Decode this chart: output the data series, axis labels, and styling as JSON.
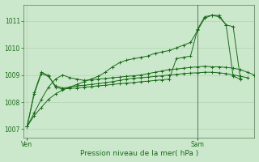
{
  "bg_color": "#cce8cc",
  "grid_color": "#aaccaa",
  "line_color": "#1a6b1a",
  "marker_color": "#1a6b1a",
  "xlabel": "Pression niveau de la mer( hPa )",
  "xlabel_color": "#1a6b1a",
  "tick_label_color": "#1a6b1a",
  "xtick_labels": [
    "Ven",
    "Sam"
  ],
  "xtick_positions": [
    0,
    24
  ],
  "ylim": [
    1006.7,
    1011.6
  ],
  "xlim": [
    -0.5,
    32
  ],
  "yticks": [
    1007,
    1008,
    1009,
    1010,
    1011
  ],
  "series": [
    [
      1007.1,
      1007.5,
      1007.8,
      1008.1,
      1008.3,
      1008.45,
      1008.55,
      1008.65,
      1008.75,
      1008.85,
      1008.95,
      1009.1,
      1009.3,
      1009.45,
      1009.55,
      1009.6,
      1009.65,
      1009.7,
      1009.8,
      1009.85,
      1009.9,
      1010.0,
      1010.1,
      1010.2,
      1010.65,
      1011.1,
      1011.2,
      1011.15,
      1010.85,
      1008.95,
      1008.85
    ],
    [
      1007.1,
      1007.6,
      1008.1,
      1008.55,
      1008.85,
      1009.0,
      1008.9,
      1008.85,
      1008.8,
      1008.82,
      1008.85,
      1008.87,
      1008.9,
      1008.92,
      1008.95,
      1008.97,
      1009.0,
      1009.05,
      1009.1,
      1009.15,
      1009.2,
      1009.22,
      1009.25,
      1009.28,
      1009.3,
      1009.32,
      1009.3,
      1009.3,
      1009.28,
      1009.25,
      1009.2,
      1009.1,
      1009.0
    ],
    [
      1007.1,
      1008.3,
      1009.05,
      1008.95,
      1008.6,
      1008.52,
      1008.55,
      1008.6,
      1008.62,
      1008.65,
      1008.68,
      1008.72,
      1008.75,
      1008.8,
      1008.85,
      1008.88,
      1008.9,
      1008.92,
      1008.95,
      1008.97,
      1009.0,
      1009.02,
      1009.05,
      1009.07,
      1009.08,
      1009.1,
      1009.1,
      1009.08,
      1009.05,
      1009.0,
      1008.95,
      1008.9
    ],
    [
      1007.1,
      1008.35,
      1009.1,
      1008.98,
      1008.55,
      1008.48,
      1008.5,
      1008.52,
      1008.55,
      1008.57,
      1008.6,
      1008.62,
      1008.65,
      1008.68,
      1008.7,
      1008.72,
      1008.75,
      1008.77,
      1008.8,
      1008.82,
      1008.85,
      1009.6,
      1009.65,
      1009.7,
      1010.7,
      1011.15,
      1011.2,
      1011.2,
      1010.85,
      1010.78,
      1008.88
    ]
  ],
  "series_x": [
    [
      0,
      1,
      2,
      3,
      4,
      5,
      6,
      7,
      8,
      9,
      10,
      11,
      12,
      13,
      14,
      15,
      16,
      17,
      18,
      19,
      20,
      21,
      22,
      23,
      24,
      25,
      26,
      27,
      28,
      29,
      30
    ],
    [
      0,
      1,
      2,
      3,
      4,
      5,
      6,
      7,
      8,
      9,
      10,
      11,
      12,
      13,
      14,
      15,
      16,
      17,
      18,
      19,
      20,
      21,
      22,
      23,
      24,
      25,
      26,
      27,
      28,
      29,
      30,
      31,
      32
    ],
    [
      0,
      1,
      2,
      3,
      4,
      5,
      6,
      7,
      8,
      9,
      10,
      11,
      12,
      13,
      14,
      15,
      16,
      17,
      18,
      19,
      20,
      21,
      22,
      23,
      24,
      25,
      26,
      27,
      28,
      29,
      30,
      31
    ],
    [
      0,
      1,
      2,
      3,
      4,
      5,
      6,
      7,
      8,
      9,
      10,
      11,
      12,
      13,
      14,
      15,
      16,
      17,
      18,
      19,
      20,
      21,
      22,
      23,
      24,
      25,
      26,
      27,
      28,
      29,
      30
    ]
  ],
  "vline_x": 24,
  "vline_color": "#557755"
}
